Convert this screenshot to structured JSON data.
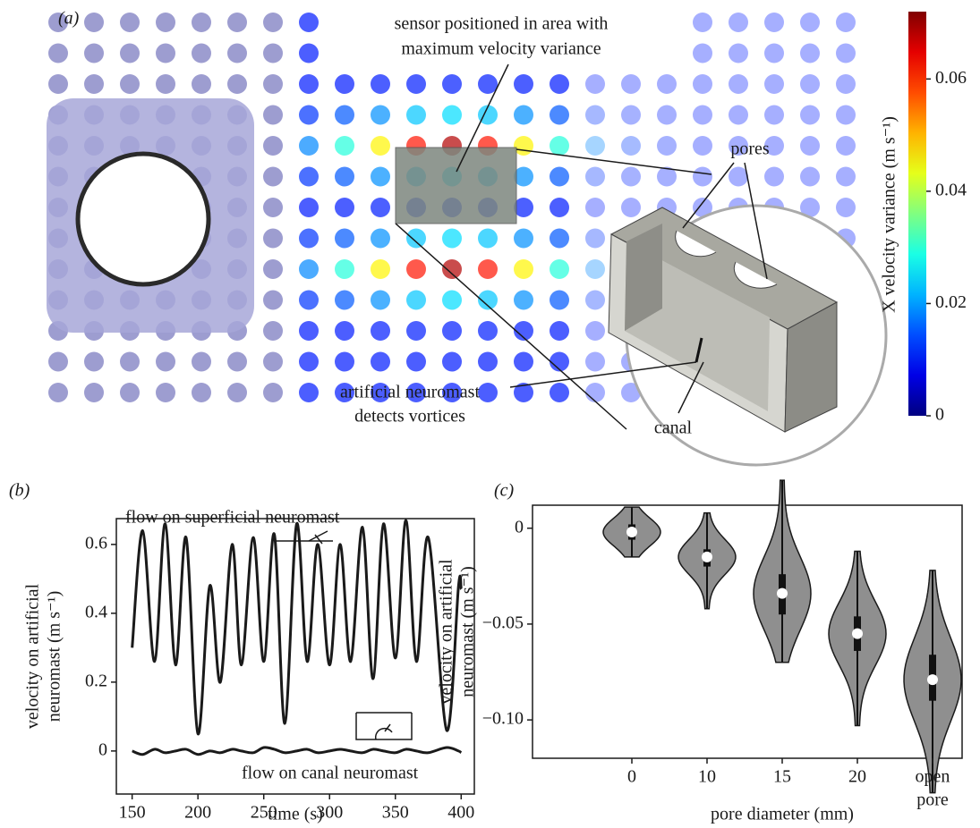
{
  "panel_a": {
    "label": "(a)",
    "sensor_note": [
      "sensor positioned in area with",
      "maximum velocity variance"
    ],
    "pores": "pores",
    "canal": "canal",
    "neuromast_note": [
      "artificial neuromast",
      "detects vortices"
    ],
    "colorbar": {
      "label": "X velocity variance (m s⁻¹)",
      "lim": [
        0,
        0.072
      ],
      "ticks": [
        0,
        0.02,
        0.04,
        0.06
      ]
    }
  },
  "chart_data": [
    {
      "type": "line",
      "panel_label": "(b)",
      "x_label": "time (s)",
      "y_label": [
        "velocity on artificial",
        "neuromast (m s⁻¹)"
      ],
      "x": [
        150,
        158,
        167,
        175,
        183,
        191,
        200,
        209,
        217,
        226,
        233,
        242,
        250,
        258,
        266,
        275,
        283,
        291,
        300,
        308,
        316,
        325,
        333,
        341,
        350,
        358,
        366,
        375,
        389,
        398,
        400
      ],
      "series": [
        {
          "name": "flow on superficial neuromast",
          "color": "#1a1a1a",
          "values": [
            0.3,
            0.64,
            0.26,
            0.66,
            0.25,
            0.62,
            0.05,
            0.48,
            0.2,
            0.6,
            0.25,
            0.62,
            0.26,
            0.63,
            0.08,
            0.66,
            0.26,
            0.6,
            0.25,
            0.6,
            0.26,
            0.65,
            0.21,
            0.66,
            0.27,
            0.67,
            0.26,
            0.62,
            0.06,
            0.48,
            0.47
          ]
        },
        {
          "name": "flow on canal neuromast",
          "color": "#1a1a1a",
          "values": [
            0,
            -0.01,
            0.005,
            -0.005,
            0,
            0.005,
            -0.01,
            0,
            -0.005,
            0.005,
            0,
            -0.005,
            0.01,
            0.005,
            -0.005,
            0,
            0.005,
            -0.005,
            0,
            0.005,
            0,
            -0.005,
            0.005,
            0,
            -0.005,
            0.005,
            0,
            -0.005,
            0.01,
            0,
            -0.005
          ]
        }
      ],
      "xlim": [
        138,
        410
      ],
      "ylim": [
        -0.125,
        0.675
      ],
      "xticks": [
        150,
        200,
        250,
        300,
        350,
        400
      ],
      "yticks": [
        0,
        0.2,
        0.4,
        0.6
      ]
    },
    {
      "type": "violin",
      "panel_label": "(c)",
      "x_label": "pore diameter (mm)",
      "y_label": [
        "velocity on artificial",
        "neuromast (m s⁻¹)"
      ],
      "categories": [
        "0",
        "10",
        "15",
        "20",
        [
          "open",
          "pore"
        ]
      ],
      "color": "#8f8f8f",
      "median": [
        -0.002,
        -0.015,
        -0.034,
        -0.055,
        -0.079
      ],
      "q1": [
        -0.006,
        -0.02,
        -0.045,
        -0.064,
        -0.09
      ],
      "q3": [
        0.002,
        -0.011,
        -0.024,
        -0.046,
        -0.066
      ],
      "min": [
        -0.015,
        -0.042,
        -0.07,
        -0.103,
        -0.138
      ],
      "max": [
        0.011,
        0.008,
        0.025,
        -0.012,
        -0.022
      ],
      "ylim": [
        -0.12,
        0.012
      ],
      "yticks": [
        0,
        {
          "value": -0.05,
          "label": "−0.05"
        },
        {
          "value": -0.1,
          "label": "−0.10"
        }
      ]
    }
  ]
}
